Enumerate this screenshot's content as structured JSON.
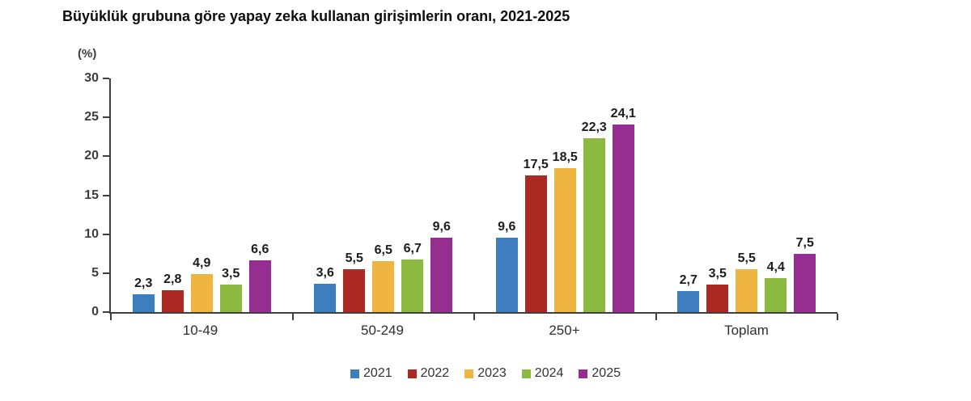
{
  "chart_data": {
    "type": "bar",
    "title": "Büyüklük grubuna göre yapay zeka kullanan girişimlerin oranı, 2021-2025",
    "unit_label": "(%)",
    "categories": [
      "10-49",
      "50-249",
      "250+",
      "Toplam"
    ],
    "series": [
      {
        "name": "2021",
        "color": "#3E7DBE",
        "values": [
          2.3,
          3.6,
          9.6,
          2.7
        ],
        "labels": [
          "2,3",
          "3,6",
          "9,6",
          "2,7"
        ]
      },
      {
        "name": "2022",
        "color": "#AD2A24",
        "values": [
          2.8,
          5.5,
          17.5,
          3.5
        ],
        "labels": [
          "2,8",
          "5,5",
          "17,5",
          "3,5"
        ]
      },
      {
        "name": "2023",
        "color": "#F0B441",
        "values": [
          4.9,
          6.5,
          18.5,
          5.5
        ],
        "labels": [
          "4,9",
          "6,5",
          "18,5",
          "5,5"
        ]
      },
      {
        "name": "2024",
        "color": "#8CBA41",
        "values": [
          3.5,
          6.7,
          22.3,
          4.4
        ],
        "labels": [
          "3,5",
          "6,7",
          "22,3",
          "4,4"
        ]
      },
      {
        "name": "2025",
        "color": "#962D90",
        "values": [
          6.6,
          9.6,
          24.1,
          7.5
        ],
        "labels": [
          "6,6",
          "9,6",
          "24,1",
          "7,5"
        ]
      }
    ],
    "ylim": [
      0,
      30
    ],
    "yticks": [
      0,
      5,
      10,
      15,
      20,
      25,
      30
    ],
    "grid": false,
    "legend_position": "bottom",
    "axis_color": "#3f3f3f"
  }
}
